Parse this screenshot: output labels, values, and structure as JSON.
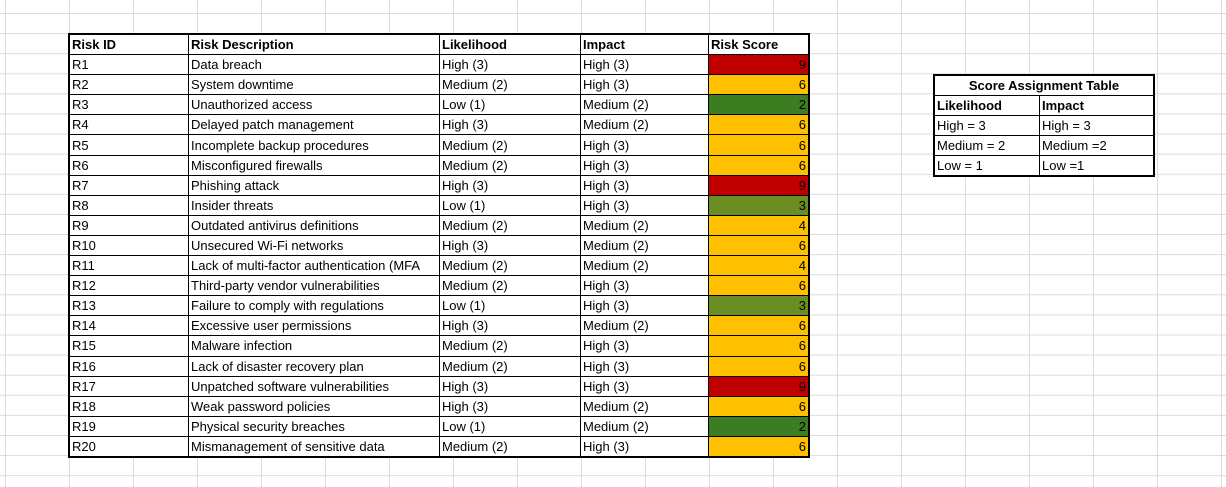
{
  "risk_table": {
    "headers": {
      "id": "Risk ID",
      "description": "Risk Description",
      "likelihood": "Likelihood",
      "impact": "Impact",
      "score": "Risk Score"
    },
    "rows": [
      {
        "id": "R1",
        "description": "Data breach",
        "likelihood": "High (3)",
        "impact": "High (3)",
        "score": "9",
        "color": "#c00000"
      },
      {
        "id": "R2",
        "description": "System downtime",
        "likelihood": "Medium (2)",
        "impact": "High (3)",
        "score": "6",
        "color": "#ffc000"
      },
      {
        "id": "R3",
        "description": "Unauthorized access",
        "likelihood": "Low (1)",
        "impact": "Medium (2)",
        "score": "2",
        "color": "#3c7d22"
      },
      {
        "id": "R4",
        "description": "Delayed patch management",
        "likelihood": "High (3)",
        "impact": "Medium (2)",
        "score": "6",
        "color": "#ffc000"
      },
      {
        "id": "R5",
        "description": "Incomplete backup procedures",
        "likelihood": "Medium (2)",
        "impact": "High (3)",
        "score": "6",
        "color": "#ffc000"
      },
      {
        "id": "R6",
        "description": "Misconfigured firewalls",
        "likelihood": "Medium (2)",
        "impact": "High (3)",
        "score": "6",
        "color": "#ffc000"
      },
      {
        "id": "R7",
        "description": "Phishing attack",
        "likelihood": "High (3)",
        "impact": "High (3)",
        "score": "9",
        "color": "#c00000"
      },
      {
        "id": "R8",
        "description": "Insider threats",
        "likelihood": "Low (1)",
        "impact": "High (3)",
        "score": "3",
        "color": "#6b8e23"
      },
      {
        "id": "R9",
        "description": "Outdated antivirus definitions",
        "likelihood": "Medium (2)",
        "impact": "Medium (2)",
        "score": "4",
        "color": "#ffc000"
      },
      {
        "id": "R10",
        "description": "Unsecured Wi-Fi networks",
        "likelihood": "High (3)",
        "impact": "Medium (2)",
        "score": "6",
        "color": "#ffc000"
      },
      {
        "id": "R11",
        "description": "Lack of multi-factor authentication (MFA",
        "likelihood": "Medium (2)",
        "impact": "Medium (2)",
        "score": "4",
        "color": "#ffc000"
      },
      {
        "id": "R12",
        "description": "Third-party vendor vulnerabilities",
        "likelihood": "Medium (2)",
        "impact": "High (3)",
        "score": "6",
        "color": "#ffc000"
      },
      {
        "id": "R13",
        "description": "Failure to comply with regulations",
        "likelihood": "Low (1)",
        "impact": "High (3)",
        "score": "3",
        "color": "#6b8e23"
      },
      {
        "id": "R14",
        "description": "Excessive user permissions",
        "likelihood": "High (3)",
        "impact": "Medium (2)",
        "score": "6",
        "color": "#ffc000"
      },
      {
        "id": "R15",
        "description": "Malware infection",
        "likelihood": "Medium (2)",
        "impact": "High (3)",
        "score": "6",
        "color": "#ffc000"
      },
      {
        "id": "R16",
        "description": "Lack of disaster recovery plan",
        "likelihood": "Medium (2)",
        "impact": "High (3)",
        "score": "6",
        "color": "#ffc000"
      },
      {
        "id": "R17",
        "description": "Unpatched software vulnerabilities",
        "likelihood": "High (3)",
        "impact": "High (3)",
        "score": "9",
        "color": "#c00000"
      },
      {
        "id": "R18",
        "description": "Weak password policies",
        "likelihood": "High (3)",
        "impact": "Medium (2)",
        "score": "6",
        "color": "#ffc000"
      },
      {
        "id": "R19",
        "description": "Physical security breaches",
        "likelihood": "Low (1)",
        "impact": "Medium (2)",
        "score": "2",
        "color": "#3c7d22"
      },
      {
        "id": "R20",
        "description": "Mismanagement of sensitive data",
        "likelihood": "Medium (2)",
        "impact": "High (3)",
        "score": "6",
        "color": "#ffc000"
      }
    ]
  },
  "score_table": {
    "title": "Score Assignment Table",
    "headers": {
      "likelihood": "Likelihood",
      "impact": "Impact"
    },
    "rows": [
      {
        "likelihood": "High = 3",
        "impact": "High = 3"
      },
      {
        "likelihood": "Medium = 2",
        "impact": "Medium =2"
      },
      {
        "likelihood": "Low = 1",
        "impact": "Low =1"
      }
    ]
  }
}
